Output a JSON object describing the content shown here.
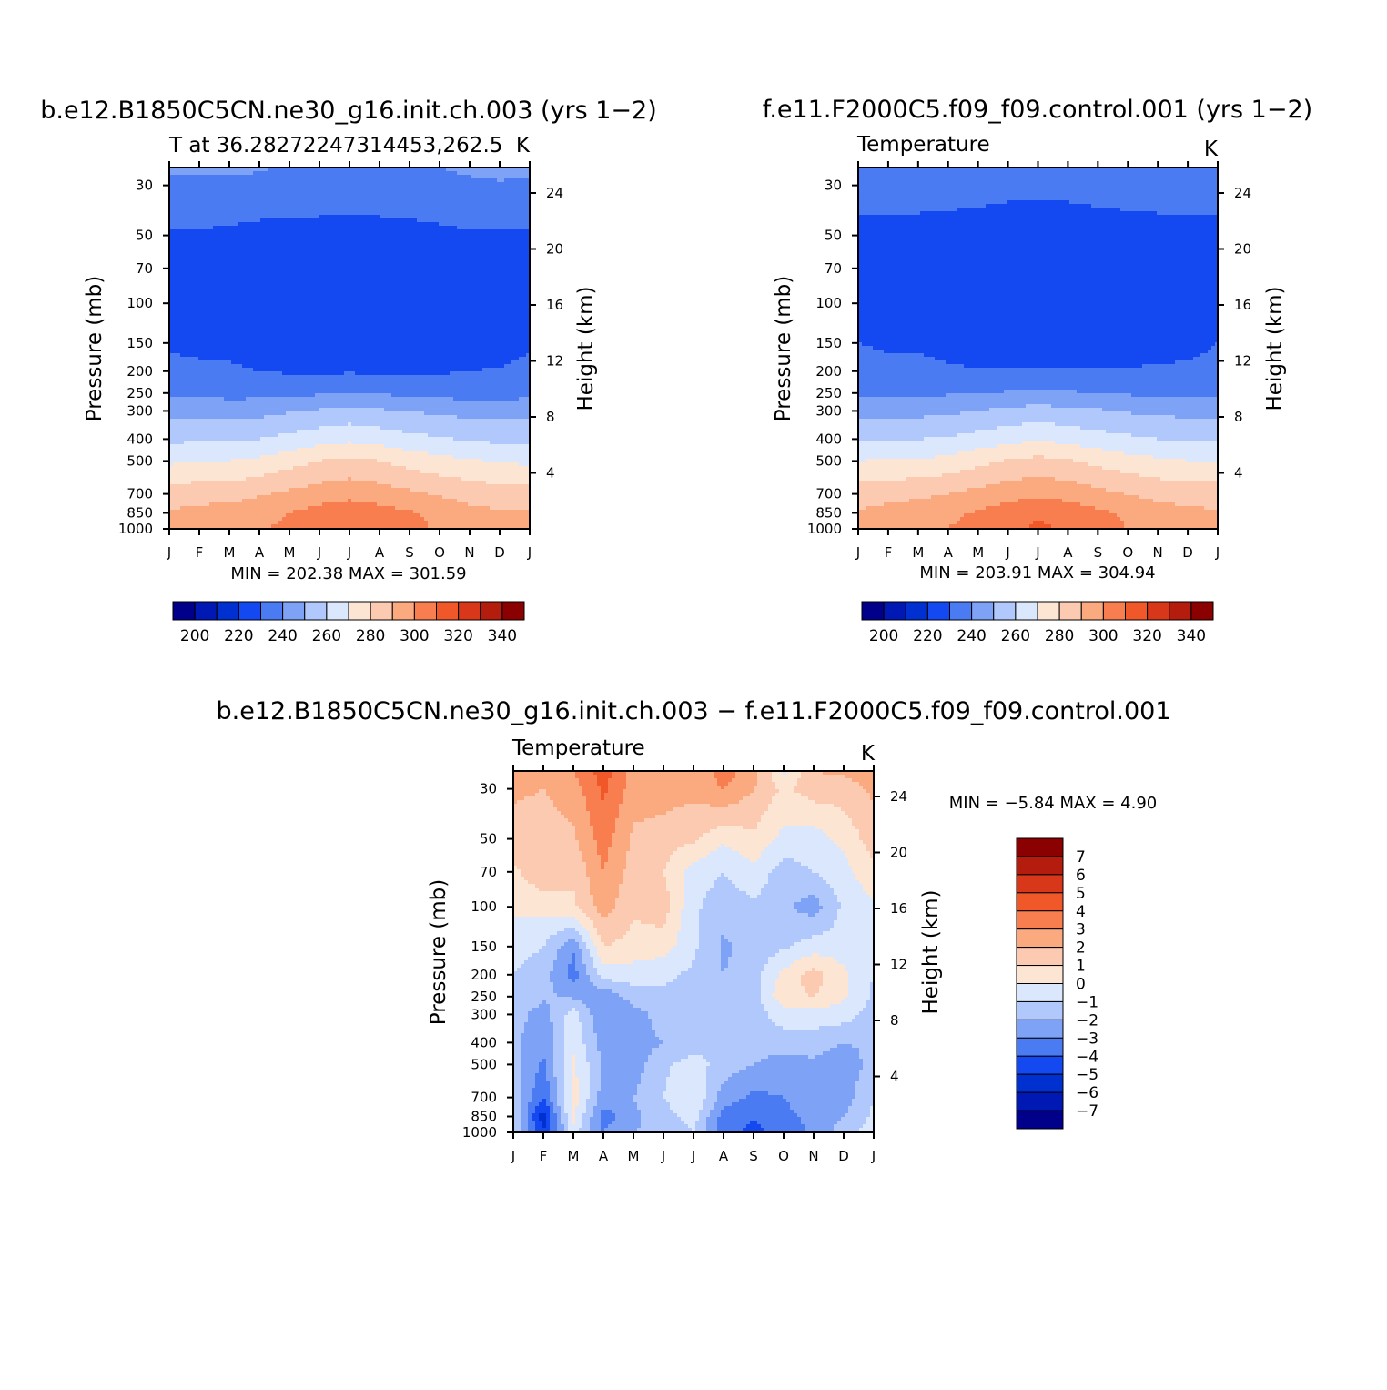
{
  "figure": {
    "bottom_title": "b.e12.B1850C5CN.ne30_g16.init.ch.003 − f.e11.F2000C5.f09_f09.control.001"
  },
  "chart_data": [
    {
      "type": "heatmap",
      "id": "panel1",
      "title": "b.e12.B1850C5CN.ne30_g16.init.ch.003 (yrs 1−2)",
      "subtitle_left": "T at 36.28272247314453,262.5",
      "subtitle_right": "K",
      "xlabel": "",
      "ylabel": "Pressure (mb)",
      "ylabel_right": "Height (km)",
      "x_ticks": [
        "J",
        "F",
        "M",
        "A",
        "M",
        "J",
        "J",
        "A",
        "S",
        "O",
        "N",
        "D",
        "J"
      ],
      "pressure_ticks": [
        30,
        50,
        70,
        100,
        150,
        200,
        250,
        300,
        400,
        500,
        700,
        850,
        1000
      ],
      "height_ticks": [
        4,
        8,
        12,
        16,
        20,
        24
      ],
      "ylim": [
        1000,
        25
      ],
      "pressure_levels": [
        25,
        30,
        50,
        70,
        100,
        150,
        200,
        250,
        300,
        400,
        500,
        700,
        850,
        1000
      ],
      "values": [
        [
          232,
          232,
          232,
          231,
          229,
          228,
          228,
          228,
          229,
          230,
          232,
          233,
          232
        ],
        [
          228,
          228,
          228,
          227,
          226,
          225,
          225,
          225,
          226,
          227,
          228,
          229,
          228
        ],
        [
          219,
          219,
          218,
          217,
          217,
          217,
          217,
          217,
          217,
          218,
          219,
          219,
          219
        ],
        [
          214,
          213,
          212,
          213,
          212,
          212,
          212,
          212,
          212,
          212,
          213,
          214,
          214
        ],
        [
          214,
          212,
          214,
          214,
          212,
          211,
          211,
          211,
          211,
          211,
          212,
          213,
          214
        ],
        [
          218,
          216,
          216,
          214,
          212,
          211,
          211,
          211,
          211,
          212,
          213,
          214,
          218
        ],
        [
          224,
          223,
          222,
          220,
          219,
          219,
          219,
          219,
          219,
          219,
          220,
          221,
          224
        ],
        [
          228,
          228,
          227,
          227,
          227,
          229,
          230,
          229,
          228,
          227,
          226,
          226,
          228
        ],
        [
          236,
          236,
          236,
          237,
          239,
          241,
          243,
          241,
          240,
          238,
          237,
          236,
          236
        ],
        [
          248,
          249,
          249,
          250,
          253,
          256,
          258,
          256,
          253,
          251,
          249,
          248,
          248
        ],
        [
          258,
          260,
          260,
          262,
          266,
          270,
          272,
          270,
          266,
          263,
          261,
          259,
          258
        ],
        [
          275,
          276,
          276,
          279,
          282,
          285,
          287,
          285,
          282,
          279,
          276,
          275,
          275
        ],
        [
          281,
          283,
          284,
          287,
          290,
          294,
          296,
          294,
          291,
          287,
          283,
          281,
          281
        ],
        [
          283,
          285,
          286,
          289,
          292,
          296,
          299,
          297,
          293,
          289,
          285,
          283,
          283
        ]
      ],
      "min_label": "MIN = 202.38 MAX = 301.59",
      "colorbar": {
        "ticks": [
          "200",
          "220",
          "240",
          "260",
          "280",
          "300",
          "320",
          "340"
        ],
        "levels": [
          195,
          200,
          205,
          210,
          220,
          230,
          240,
          250,
          260,
          270,
          280,
          290,
          300,
          310,
          320,
          330,
          340
        ],
        "colors": [
          "#00008b",
          "#0018b4",
          "#0030d0",
          "#1448f0",
          "#4a7bf2",
          "#7da2f6",
          "#b0c8fb",
          "#dbe7fd",
          "#fde5d4",
          "#fccab0",
          "#fba97e",
          "#f87e4f",
          "#f0582a",
          "#d8371a",
          "#b41c0e",
          "#8b0000"
        ]
      }
    },
    {
      "type": "heatmap",
      "id": "panel2",
      "title": "f.e11.F2000C5.f09_f09.control.001 (yrs 1−2)",
      "subtitle_left": "Temperature",
      "subtitle_right": "K",
      "xlabel": "",
      "ylabel": "Pressure (mb)",
      "ylabel_right": "Height (km)",
      "x_ticks": [
        "J",
        "F",
        "M",
        "A",
        "M",
        "J",
        "J",
        "A",
        "S",
        "O",
        "N",
        "D",
        "J"
      ],
      "pressure_ticks": [
        30,
        50,
        70,
        100,
        150,
        200,
        250,
        300,
        400,
        500,
        700,
        850,
        1000
      ],
      "height_ticks": [
        4,
        8,
        12,
        16,
        20,
        24
      ],
      "ylim": [
        1000,
        25
      ],
      "pressure_levels": [
        25,
        30,
        50,
        70,
        100,
        150,
        200,
        250,
        300,
        400,
        500,
        700,
        850,
        1000
      ],
      "values": [
        [
          229,
          229,
          229,
          228,
          227,
          226,
          226,
          225,
          226,
          227,
          228,
          229,
          229
        ],
        [
          225,
          225,
          225,
          224,
          223,
          222,
          222,
          222,
          223,
          224,
          225,
          225,
          225
        ],
        [
          217,
          216,
          216,
          216,
          216,
          216,
          216,
          216,
          216,
          216,
          216,
          217,
          217
        ],
        [
          213,
          212,
          211,
          212,
          212,
          212,
          212,
          212,
          212,
          212,
          212,
          212,
          213
        ],
        [
          215,
          213,
          213,
          213,
          211,
          211,
          211,
          211,
          211,
          211,
          212,
          213,
          215
        ],
        [
          220,
          218,
          218,
          215,
          213,
          213,
          212,
          212,
          212,
          213,
          214,
          215,
          220
        ],
        [
          225,
          224,
          224,
          222,
          221,
          221,
          221,
          221,
          221,
          221,
          222,
          223,
          225
        ],
        [
          229,
          229,
          229,
          229,
          229,
          231,
          232,
          231,
          230,
          229,
          228,
          228,
          229
        ],
        [
          237,
          237,
          237,
          238,
          240,
          242,
          244,
          242,
          241,
          239,
          238,
          237,
          237
        ],
        [
          249,
          250,
          250,
          251,
          254,
          257,
          259,
          257,
          254,
          252,
          250,
          249,
          249
        ],
        [
          260,
          261,
          261,
          263,
          267,
          271,
          273,
          271,
          267,
          264,
          262,
          260,
          260
        ],
        [
          276,
          277,
          278,
          280,
          283,
          286,
          288,
          286,
          283,
          280,
          277,
          276,
          276
        ],
        [
          281,
          283,
          285,
          288,
          291,
          295,
          298,
          296,
          292,
          288,
          284,
          282,
          281
        ],
        [
          284,
          286,
          287,
          290,
          294,
          298,
          302,
          299,
          295,
          290,
          286,
          284,
          284
        ]
      ],
      "min_label": "MIN = 203.91 MAX = 304.94",
      "colorbar": {
        "ticks": [
          "200",
          "220",
          "240",
          "260",
          "280",
          "300",
          "320",
          "340"
        ],
        "levels": [
          195,
          200,
          205,
          210,
          220,
          230,
          240,
          250,
          260,
          270,
          280,
          290,
          300,
          310,
          320,
          330,
          340
        ],
        "colors": [
          "#00008b",
          "#0018b4",
          "#0030d0",
          "#1448f0",
          "#4a7bf2",
          "#7da2f6",
          "#b0c8fb",
          "#dbe7fd",
          "#fde5d4",
          "#fccab0",
          "#fba97e",
          "#f87e4f",
          "#f0582a",
          "#d8371a",
          "#b41c0e",
          "#8b0000"
        ]
      }
    },
    {
      "type": "heatmap",
      "id": "panel3",
      "title": "",
      "subtitle_left": "Temperature",
      "subtitle_right": "K",
      "xlabel": "",
      "ylabel": "Pressure (mb)",
      "ylabel_right": "Height (km)",
      "x_ticks": [
        "J",
        "F",
        "M",
        "A",
        "M",
        "J",
        "J",
        "A",
        "S",
        "O",
        "N",
        "D",
        "J"
      ],
      "pressure_ticks": [
        30,
        50,
        70,
        100,
        150,
        200,
        250,
        300,
        400,
        500,
        700,
        850,
        1000
      ],
      "height_ticks": [
        4,
        8,
        12,
        16,
        20,
        24
      ],
      "ylim": [
        1000,
        25
      ],
      "pressure_levels": [
        25,
        30,
        50,
        70,
        100,
        150,
        200,
        250,
        300,
        400,
        500,
        700,
        850,
        1000
      ],
      "values": [
        [
          2.5,
          2.5,
          3.0,
          4.5,
          2.5,
          2.8,
          2.0,
          3.5,
          2.5,
          -0.3,
          2.0,
          2.2,
          2.5
        ],
        [
          2.2,
          2.0,
          2.5,
          4.2,
          2.5,
          2.5,
          2.3,
          3.0,
          2.0,
          0.8,
          1.5,
          1.5,
          2.2
        ],
        [
          1.5,
          1.5,
          1.8,
          3.5,
          1.8,
          1.5,
          1.2,
          0.2,
          0.8,
          -0.3,
          -0.5,
          0.3,
          1.5
        ],
        [
          0.8,
          1.8,
          1.2,
          3.0,
          1.5,
          1.0,
          -0.5,
          -1.0,
          -0.3,
          -1.5,
          -1.0,
          -0.4,
          0.8
        ],
        [
          0.2,
          0.3,
          0.8,
          2.5,
          1.2,
          1.5,
          -0.8,
          -1.6,
          -1.2,
          -1.8,
          -2.5,
          -0.8,
          -0.2
        ],
        [
          -0.6,
          -1.0,
          -2.8,
          1.0,
          0.6,
          0.5,
          -0.8,
          -2.2,
          -1.5,
          -1.2,
          -0.5,
          -0.5,
          -0.6
        ],
        [
          -1.0,
          -1.5,
          -3.5,
          -0.5,
          -0.5,
          -0.8,
          -1.2,
          -2.0,
          -1.5,
          0.3,
          1.5,
          0.2,
          -1.0
        ],
        [
          -1.2,
          -1.8,
          -2.2,
          -2.8,
          -1.5,
          -1.2,
          -1.2,
          -1.5,
          -1.5,
          0.8,
          1.0,
          0.2,
          -1.2
        ],
        [
          -1.5,
          -2.5,
          -0.5,
          -3.0,
          -2.5,
          -1.5,
          -1.2,
          -1.5,
          -1.5,
          -0.5,
          -0.5,
          -0.5,
          -1.5
        ],
        [
          -1.8,
          -2.8,
          -0.2,
          -2.5,
          -2.5,
          -2.0,
          -1.5,
          -1.0,
          -1.5,
          -1.5,
          -1.5,
          -2.0,
          -1.8
        ],
        [
          -1.5,
          -3.2,
          0.2,
          -2.2,
          -2.5,
          -1.2,
          -0.5,
          -1.5,
          -2.0,
          -2.5,
          -2.2,
          -2.8,
          -1.5
        ],
        [
          -1.5,
          -4.0,
          0.5,
          -2.5,
          -2.0,
          -1.0,
          0.0,
          -2.5,
          -3.2,
          -3.0,
          -2.0,
          -2.5,
          -1.0
        ],
        [
          -1.2,
          -5.5,
          0.3,
          -3.5,
          -2.2,
          -1.5,
          -0.5,
          -3.5,
          -4.0,
          -3.5,
          -2.5,
          -2.0,
          -0.8
        ],
        [
          -1.0,
          -5.0,
          -0.5,
          -3.0,
          -2.0,
          -1.8,
          -1.0,
          -3.8,
          -4.2,
          -3.8,
          -2.8,
          -1.5,
          -0.5
        ]
      ],
      "min_label": "MIN = −5.84 MAX = 4.90",
      "colorbar": {
        "ticks": [
          "7",
          "6",
          "5",
          "4",
          "3",
          "2",
          "1",
          "0",
          "−1",
          "−2",
          "−3",
          "−4",
          "−5",
          "−6",
          "−7"
        ],
        "levels": [
          -8,
          -7,
          -6,
          -5,
          -4,
          -3,
          -2,
          -1,
          0,
          1,
          2,
          3,
          4,
          5,
          6,
          7,
          8
        ],
        "colors": [
          "#00008b",
          "#0018b4",
          "#0030d0",
          "#1448f0",
          "#4a7bf2",
          "#7da2f6",
          "#b0c8fb",
          "#dbe7fd",
          "#fde5d4",
          "#fccab0",
          "#fba97e",
          "#f87e4f",
          "#f0582a",
          "#d8371a",
          "#b41c0e",
          "#8b0000"
        ]
      }
    }
  ]
}
